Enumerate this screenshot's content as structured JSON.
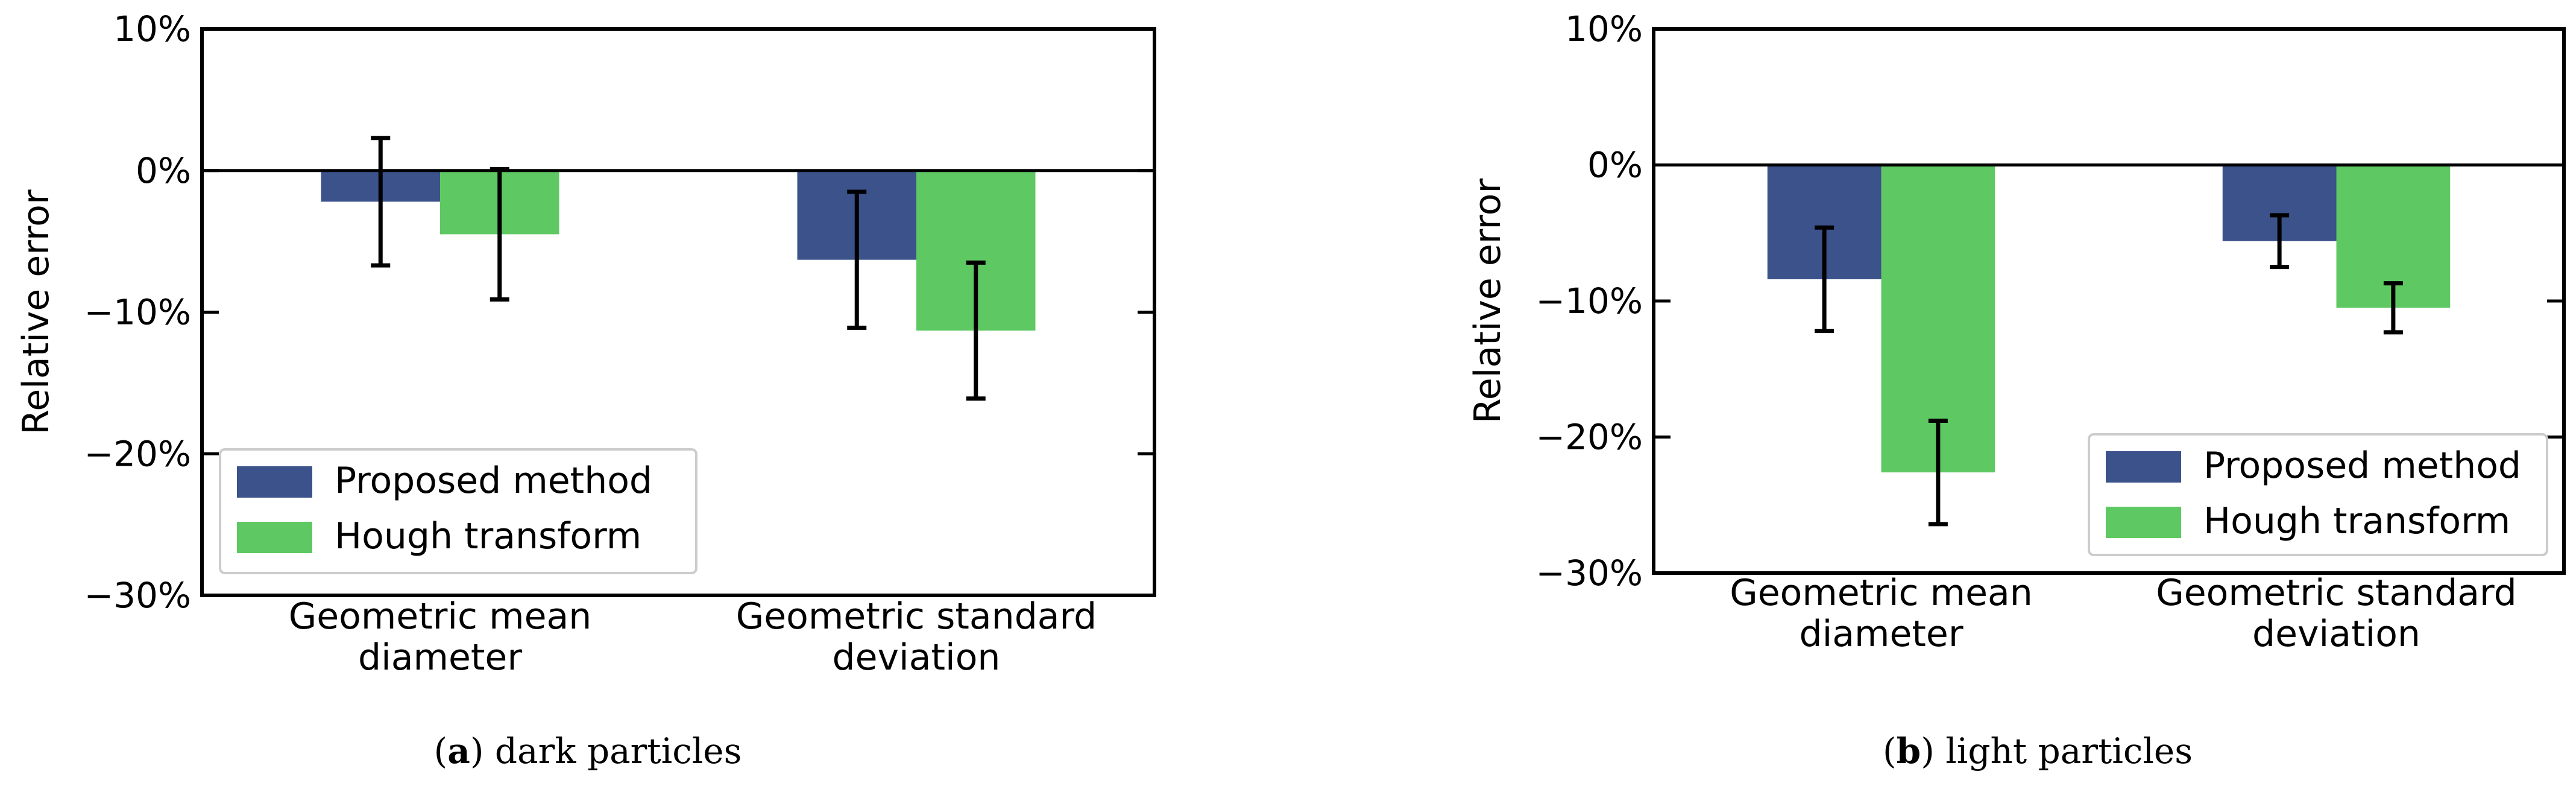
{
  "chart_data": [
    {
      "type": "bar",
      "caption": {
        "letter": "a",
        "text": "dark particles"
      },
      "categories": [
        [
          "Geometric mean",
          "diameter"
        ],
        [
          "Geometric standard",
          "deviation"
        ]
      ],
      "ylabel": "Relative error",
      "ylim": [
        -30,
        10
      ],
      "yticks": [
        10,
        0,
        -10,
        -20,
        -30
      ],
      "ytick_labels": [
        "10%",
        "0%",
        "−10%",
        "−20%",
        "−30%"
      ],
      "series": [
        {
          "name": "Proposed method",
          "values": [
            -2.2,
            -6.3
          ],
          "err": [
            4.5,
            4.8
          ],
          "color": "#3b528b"
        },
        {
          "name": "Hough transform",
          "values": [
            -4.5,
            -11.3
          ],
          "err": [
            4.6,
            4.8
          ],
          "color": "#5ec962"
        }
      ],
      "legend_position": "lower-left",
      "zero_line": true
    },
    {
      "type": "bar",
      "caption": {
        "letter": "b",
        "text": "light particles"
      },
      "categories": [
        [
          "Geometric mean",
          "diameter"
        ],
        [
          "Geometric standard",
          "deviation"
        ]
      ],
      "ylabel": "Relative error",
      "ylim": [
        -30,
        10
      ],
      "yticks": [
        10,
        0,
        -10,
        -20,
        -30
      ],
      "ytick_labels": [
        "10%",
        "0%",
        "−10%",
        "−20%",
        "−30%"
      ],
      "series": [
        {
          "name": "Proposed method",
          "values": [
            -8.4,
            -5.6
          ],
          "err": [
            3.8,
            1.9
          ],
          "color": "#3b528b"
        },
        {
          "name": "Hough transform",
          "values": [
            -22.6,
            -10.5
          ],
          "err": [
            3.8,
            1.8
          ],
          "color": "#5ec962"
        }
      ],
      "legend_position": "lower-right",
      "zero_line": true
    }
  ]
}
